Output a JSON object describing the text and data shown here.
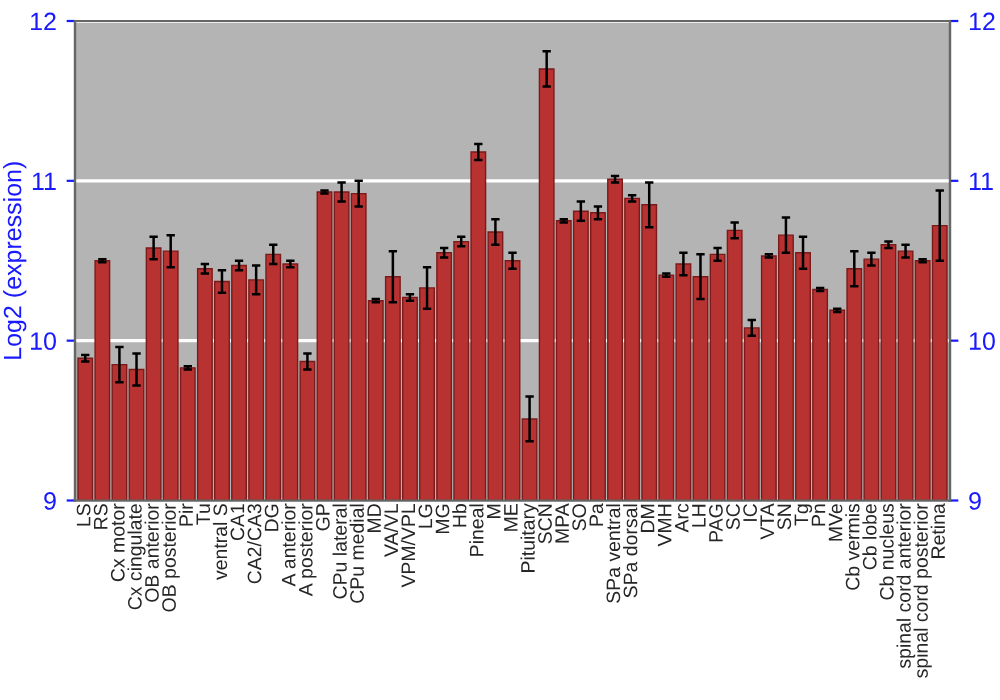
{
  "chart_data": {
    "type": "bar",
    "ylabel": "Log2 (expression)",
    "categories": [
      "LS",
      "RS",
      "Cx motor",
      "Cx cingulate",
      "OB anterior",
      "OB posterior",
      "Pir",
      "Tu",
      "ventral S",
      "CA1",
      "CA2/CA3",
      "DG",
      "A anterior",
      "A posterior",
      "GP",
      "CPu lateral",
      "CPu medial",
      "MD",
      "VA/VL",
      "VPM/VPL",
      "LG",
      "MG",
      "Hb",
      "Pineal",
      "M",
      "ME",
      "Pituitary",
      "SCN",
      "MPA",
      "SO",
      "Pa",
      "SPa ventral",
      "SPa dorsal",
      "DM",
      "VMH",
      "Arc",
      "LH",
      "PAG",
      "SC",
      "IC",
      "VTA",
      "SN",
      "Tg",
      "Pn",
      "MVe",
      "Cb vermis",
      "Cb lobe",
      "Cb nucleus",
      "spinal cord anterior",
      "spinal cord posterior",
      "Retina"
    ],
    "values": [
      9.89,
      10.5,
      9.85,
      9.82,
      10.58,
      10.56,
      9.83,
      10.45,
      10.37,
      10.47,
      10.38,
      10.54,
      10.48,
      9.87,
      10.93,
      10.93,
      10.92,
      10.25,
      10.4,
      10.27,
      10.33,
      10.55,
      10.62,
      11.18,
      10.68,
      10.5,
      9.51,
      11.7,
      10.75,
      10.81,
      10.8,
      11.01,
      10.89,
      10.85,
      10.41,
      10.48,
      10.4,
      10.54,
      10.69,
      10.08,
      10.53,
      10.66,
      10.55,
      10.32,
      10.19,
      10.45,
      10.51,
      10.6,
      10.56,
      10.5,
      10.72
    ],
    "errors": [
      0.02,
      0.01,
      0.11,
      0.1,
      0.07,
      0.1,
      0.01,
      0.03,
      0.07,
      0.03,
      0.09,
      0.06,
      0.02,
      0.05,
      0.01,
      0.06,
      0.08,
      0.01,
      0.16,
      0.02,
      0.13,
      0.03,
      0.03,
      0.05,
      0.08,
      0.05,
      0.14,
      0.11,
      0.01,
      0.06,
      0.04,
      0.02,
      0.02,
      0.14,
      0.01,
      0.07,
      0.14,
      0.04,
      0.05,
      0.05,
      0.01,
      0.11,
      0.1,
      0.01,
      0.01,
      0.11,
      0.04,
      0.02,
      0.04,
      0.01,
      0.22
    ],
    "color": "#b83232",
    "ylim": [
      9,
      12
    ],
    "yticks": [
      9,
      10,
      11,
      12
    ],
    "y2lim": [
      9,
      12
    ],
    "y2ticks": [
      9,
      10,
      11,
      12
    ],
    "grid": "y"
  }
}
